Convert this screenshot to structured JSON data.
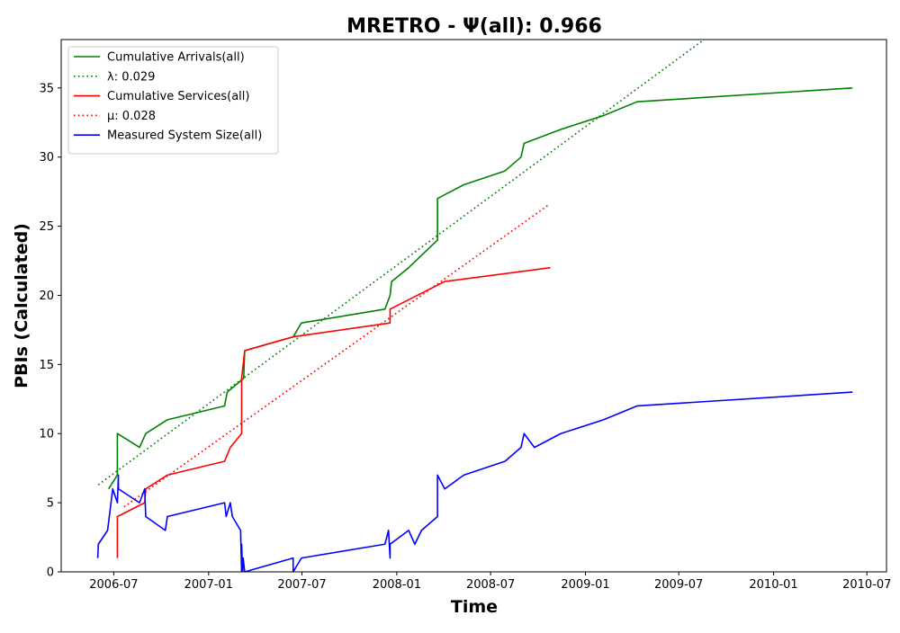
{
  "chart_data": {
    "type": "line",
    "title": "MRETRO -  Ψ(all): 0.966",
    "xlabel": "Time",
    "ylabel": "PBIs (Calculated)",
    "x_is_date": true,
    "xlim": [
      "2006-03-21",
      "2010-08-08"
    ],
    "ylim": [
      0,
      38.5
    ],
    "x_ticks": [
      {
        "value": "2006-07-01",
        "label": "2006-07"
      },
      {
        "value": "2007-01-01",
        "label": "2007-01"
      },
      {
        "value": "2007-07-01",
        "label": "2007-07"
      },
      {
        "value": "2008-01-01",
        "label": "2008-01"
      },
      {
        "value": "2008-07-01",
        "label": "2008-07"
      },
      {
        "value": "2009-01-01",
        "label": "2009-01"
      },
      {
        "value": "2009-07-01",
        "label": "2009-07"
      },
      {
        "value": "2010-01-01",
        "label": "2010-01"
      },
      {
        "value": "2010-07-01",
        "label": "2010-07"
      }
    ],
    "y_ticks": [
      0,
      5,
      10,
      15,
      20,
      25,
      30,
      35
    ],
    "grid": false,
    "legend_position": "top-left",
    "series": [
      {
        "name": "Cumulative Arrivals(all)",
        "color": "#008000",
        "style": "solid",
        "points": [
          [
            "2006-06-21",
            6
          ],
          [
            "2006-07-08",
            7
          ],
          [
            "2006-07-08",
            10
          ],
          [
            "2006-08-20",
            9
          ],
          [
            "2006-09-01",
            10
          ],
          [
            "2006-10-13",
            11
          ],
          [
            "2007-02-01",
            12
          ],
          [
            "2007-02-06",
            13
          ],
          [
            "2007-03-10",
            14
          ],
          [
            "2007-03-12",
            16
          ],
          [
            "2007-06-14",
            17
          ],
          [
            "2007-06-30",
            18
          ],
          [
            "2007-12-09",
            19
          ],
          [
            "2007-12-19",
            20
          ],
          [
            "2007-12-22",
            21
          ],
          [
            "2008-01-24",
            22
          ],
          [
            "2008-03-20",
            24
          ],
          [
            "2008-03-20",
            27
          ],
          [
            "2008-05-10",
            28
          ],
          [
            "2008-07-29",
            29
          ],
          [
            "2008-08-29",
            30
          ],
          [
            "2008-09-04",
            31
          ],
          [
            "2008-11-14",
            32
          ],
          [
            "2009-02-05",
            33
          ],
          [
            "2009-04-11",
            34
          ],
          [
            "2010-06-03",
            35
          ]
        ]
      },
      {
        "name": "λ: 0.029",
        "color": "#008000",
        "style": "dotted",
        "points": [
          [
            "2006-06-01",
            6.3
          ],
          [
            "2009-08-19",
            38.5
          ]
        ]
      },
      {
        "name": "Cumulative Services(all)",
        "color": "#ff0000",
        "style": "solid",
        "points": [
          [
            "2006-07-08",
            1
          ],
          [
            "2006-07-08",
            4
          ],
          [
            "2006-08-30",
            5
          ],
          [
            "2006-09-01",
            6
          ],
          [
            "2006-10-13",
            7
          ],
          [
            "2007-02-01",
            8
          ],
          [
            "2007-02-12",
            9
          ],
          [
            "2007-03-06",
            10
          ],
          [
            "2007-03-06",
            14
          ],
          [
            "2007-03-09",
            15
          ],
          [
            "2007-03-12",
            16
          ],
          [
            "2007-06-14",
            17
          ],
          [
            "2007-12-19",
            18
          ],
          [
            "2007-12-19",
            19
          ],
          [
            "2008-04-03",
            21
          ],
          [
            "2008-10-25",
            22
          ]
        ]
      },
      {
        "name": "μ: 0.028",
        "color": "#ff0000",
        "style": "dotted",
        "points": [
          [
            "2006-07-21",
            4.7
          ],
          [
            "2008-10-20",
            26.5
          ]
        ]
      },
      {
        "name": "Measured System Size(all)",
        "color": "#0000ff",
        "style": "solid",
        "points": [
          [
            "2006-05-31",
            1
          ],
          [
            "2006-06-01",
            2
          ],
          [
            "2006-06-19",
            3
          ],
          [
            "2006-06-29",
            6
          ],
          [
            "2006-07-08",
            5
          ],
          [
            "2006-07-10",
            7
          ],
          [
            "2006-07-10",
            6
          ],
          [
            "2006-08-20",
            5
          ],
          [
            "2006-08-30",
            6
          ],
          [
            "2006-09-01",
            4
          ],
          [
            "2006-10-09",
            3
          ],
          [
            "2006-10-13",
            4
          ],
          [
            "2007-02-01",
            5
          ],
          [
            "2007-02-04",
            4
          ],
          [
            "2007-02-12",
            5
          ],
          [
            "2007-02-16",
            4
          ],
          [
            "2007-03-04",
            3
          ],
          [
            "2007-03-06",
            0
          ],
          [
            "2007-03-06",
            2
          ],
          [
            "2007-03-08",
            0
          ],
          [
            "2007-03-09",
            1
          ],
          [
            "2007-03-12",
            0
          ],
          [
            "2007-06-14",
            1
          ],
          [
            "2007-06-14",
            0
          ],
          [
            "2007-06-30",
            1
          ],
          [
            "2007-12-09",
            2
          ],
          [
            "2007-12-16",
            3
          ],
          [
            "2007-12-19",
            1
          ],
          [
            "2007-12-19",
            2
          ],
          [
            "2008-01-24",
            3
          ],
          [
            "2008-02-05",
            2
          ],
          [
            "2008-02-18",
            3
          ],
          [
            "2008-03-20",
            4
          ],
          [
            "2008-03-20",
            7
          ],
          [
            "2008-04-03",
            6
          ],
          [
            "2008-05-10",
            7
          ],
          [
            "2008-07-29",
            8
          ],
          [
            "2008-08-29",
            9
          ],
          [
            "2008-09-04",
            10
          ],
          [
            "2008-09-24",
            9
          ],
          [
            "2008-11-14",
            10
          ],
          [
            "2009-02-05",
            11
          ],
          [
            "2009-04-11",
            12
          ],
          [
            "2010-06-03",
            13
          ]
        ]
      }
    ]
  }
}
